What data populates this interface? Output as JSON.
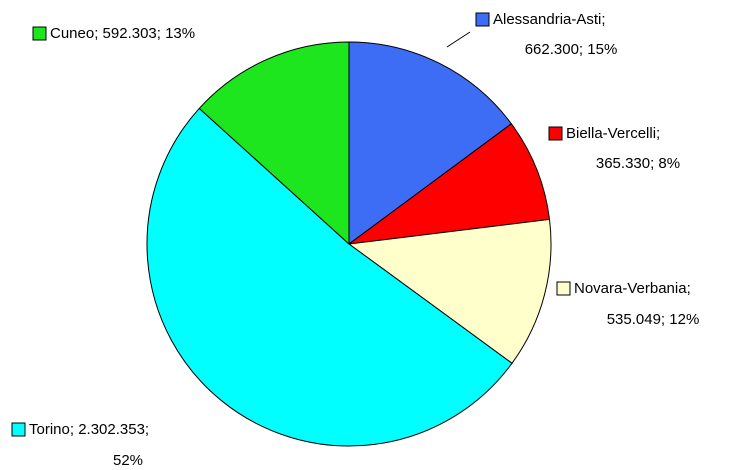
{
  "chart_data": {
    "type": "pie",
    "values": [
      662300,
      365330,
      535049,
      2302353,
      592303
    ],
    "value_labels": [
      [
        "Alessandria-Asti;",
        "662.300; 15%"
      ],
      [
        "Biella-Vercelli;",
        "365.330; 8%"
      ],
      [
        "Novara-Verbania;",
        "535.049; 12%"
      ],
      [
        "Torino; 2.302.353;",
        "52%"
      ],
      [
        "Cuneo; 592.303; 13%"
      ]
    ],
    "colors": [
      "#3d6cf5",
      "#ff0000",
      "#ffffcc",
      "#00ffff",
      "#1ee61e"
    ]
  }
}
